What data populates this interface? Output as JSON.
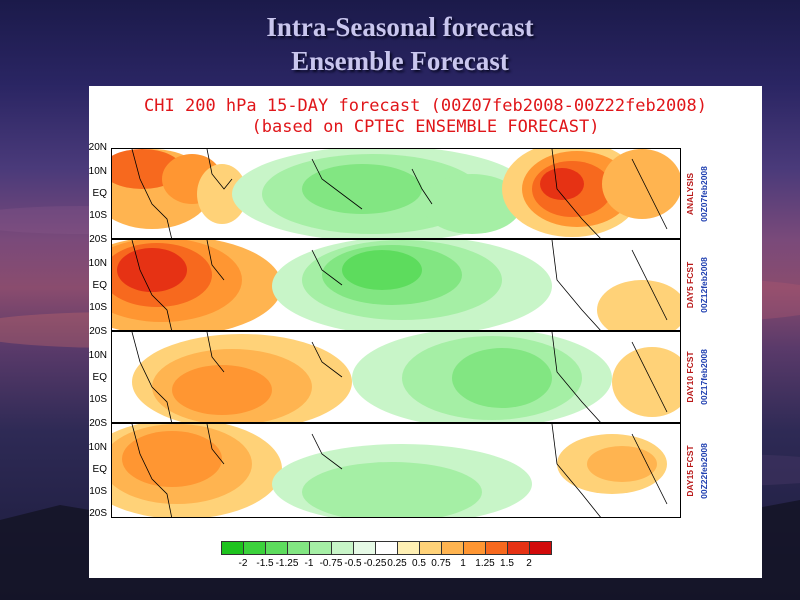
{
  "slide": {
    "title_line1": "Intra-Seasonal forecast",
    "title_line2": "Ensemble Forecast"
  },
  "map": {
    "title_line1": "CHI 200 hPa 15-DAY forecast (00Z07feb2008-00Z22feb2008)",
    "title_line2": "(based on CPTEC ENSEMBLE FORECAST)",
    "panels": [
      {
        "label1": "ANALYSIS",
        "label2": "00Z07feb2008",
        "lat_labels": [
          "20N",
          "10N",
          "EQ",
          "10S"
        ]
      },
      {
        "label1": "DAY5 FCST",
        "label2": "00Z12feb2008",
        "lat_labels": [
          "20S",
          "10N",
          "EQ",
          "10S"
        ]
      },
      {
        "label1": "DAY10 FCST",
        "label2": "00Z17feb2008",
        "lat_labels": [
          "20S",
          "10N",
          "EQ",
          "10S"
        ]
      },
      {
        "label1": "DAY15 FCST",
        "label2": "00Z22feb2008",
        "lat_labels": [
          "20S",
          "10N",
          "EQ",
          "10S",
          "20S"
        ]
      }
    ],
    "colorbar": {
      "ticks": [
        "-2",
        "-1.5",
        "-1.25",
        "-1",
        "-0.75",
        "-0.5",
        "-0.25",
        "0.25",
        "0.5",
        "0.75",
        "1",
        "1.25",
        "1.5",
        "2"
      ],
      "colors": [
        "#1ec31e",
        "#3cd23c",
        "#5ddc5d",
        "#82e682",
        "#a5efa5",
        "#c8f5c8",
        "#e6fae6",
        "#ffffff",
        "#fff0b4",
        "#ffd278",
        "#ffb450",
        "#ff9632",
        "#f7691e",
        "#e63214",
        "#d20a0a"
      ]
    }
  }
}
